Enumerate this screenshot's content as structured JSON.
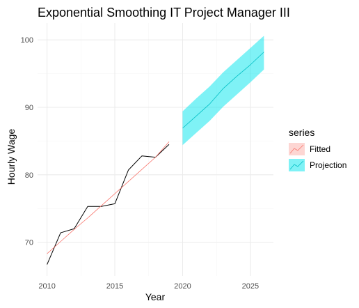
{
  "chart_data": {
    "type": "line",
    "title": "Exponential Smoothing IT Project Manager III",
    "xlabel": "Year",
    "ylabel": "Hourly Wage",
    "xlim": [
      2009.3,
      2026.7
    ],
    "ylim": [
      65.0,
      102.5
    ],
    "x_ticks": [
      2010,
      2015,
      2020,
      2025
    ],
    "y_ticks": [
      70,
      80,
      90,
      100
    ],
    "grid": true,
    "legend": {
      "title": "series",
      "position": "right"
    },
    "colors": {
      "actual": "#000000",
      "fitted": "#F8766D",
      "projection": "#00BFC4",
      "band": "#00E5EE"
    },
    "actual": {
      "x": [
        2010,
        2011,
        2012,
        2013,
        2014,
        2015,
        2016,
        2017,
        2018,
        2019
      ],
      "y": [
        66.7,
        71.4,
        72.0,
        75.3,
        75.3,
        75.7,
        80.7,
        82.8,
        82.6,
        84.5
      ]
    },
    "series": [
      {
        "name": "Fitted",
        "x": [
          2010,
          2011,
          2012,
          2013,
          2014,
          2015,
          2016,
          2017,
          2018,
          2019
        ],
        "values": [
          68.3,
          70.1,
          71.9,
          73.6,
          75.4,
          77.2,
          79.0,
          80.8,
          82.6,
          84.9
        ]
      },
      {
        "name": "Projection",
        "x": [
          2020,
          2021,
          2022,
          2023,
          2024,
          2025,
          2026
        ],
        "values": [
          86.9,
          88.7,
          90.5,
          92.8,
          94.6,
          96.3,
          98.2
        ],
        "lower": [
          84.4,
          86.2,
          88.0,
          90.1,
          91.9,
          93.7,
          95.6
        ],
        "upper": [
          89.4,
          91.3,
          93.1,
          95.2,
          97.0,
          98.8,
          100.6
        ]
      }
    ]
  }
}
